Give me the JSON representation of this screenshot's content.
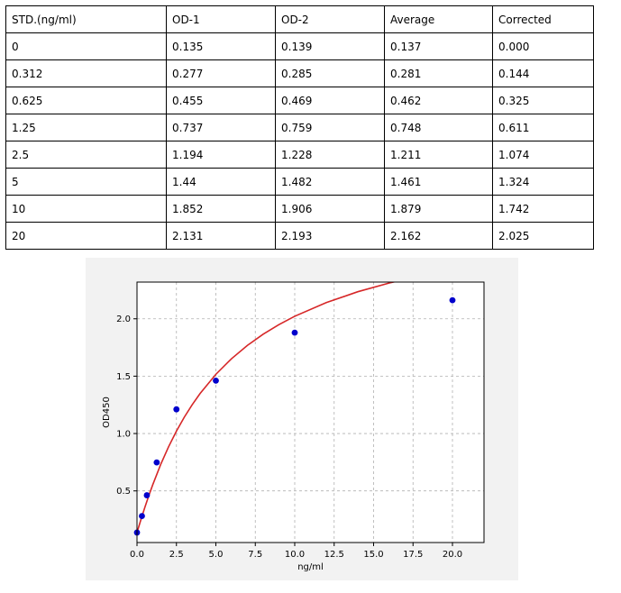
{
  "table": {
    "headers": [
      "STD.(ng/ml)",
      "OD-1",
      "OD-2",
      "Average",
      "Corrected"
    ],
    "rows": [
      [
        "0",
        "0.135",
        "0.139",
        "0.137",
        "0.000"
      ],
      [
        "0.312",
        "0.277",
        "0.285",
        "0.281",
        "0.144"
      ],
      [
        "0.625",
        "0.455",
        "0.469",
        "0.462",
        "0.325"
      ],
      [
        "1.25",
        "0.737",
        "0.759",
        "0.748",
        "0.611"
      ],
      [
        "2.5",
        "1.194",
        "1.228",
        "1.211",
        "1.074"
      ],
      [
        "5",
        "1.44",
        "1.482",
        "1.461",
        "1.324"
      ],
      [
        "10",
        "1.852",
        "1.906",
        "1.879",
        "1.742"
      ],
      [
        "20",
        "2.131",
        "2.193",
        "2.162",
        "2.025"
      ]
    ]
  },
  "chart_data": {
    "type": "scatter",
    "title": "",
    "xlabel": "ng/ml",
    "ylabel": "OD450",
    "xlim": [
      0,
      22
    ],
    "ylim": [
      0.05,
      2.32
    ],
    "xticks": [
      "0.0",
      "2.5",
      "5.0",
      "7.5",
      "10.0",
      "12.5",
      "15.0",
      "17.5",
      "20.0"
    ],
    "xtick_values": [
      0,
      2.5,
      5,
      7.5,
      10,
      12.5,
      15,
      17.5,
      20
    ],
    "yticks": [
      "0.5",
      "1.0",
      "1.5",
      "2.0"
    ],
    "ytick_values": [
      0.5,
      1.0,
      1.5,
      2.0
    ],
    "grid": true,
    "points": {
      "x": [
        0,
        0.312,
        0.625,
        1.25,
        2.5,
        5,
        10,
        20
      ],
      "y": [
        0.137,
        0.281,
        0.462,
        0.748,
        1.211,
        1.461,
        1.879,
        2.162
      ]
    },
    "fit_curve": {
      "x": [
        0,
        0.25,
        0.5,
        0.75,
        1,
        1.5,
        2,
        2.5,
        3,
        3.5,
        4,
        5,
        6,
        7,
        8,
        9,
        10,
        12,
        14,
        16,
        18,
        20,
        22
      ],
      "y": [
        0.137,
        0.25,
        0.357,
        0.459,
        0.554,
        0.73,
        0.884,
        1.021,
        1.143,
        1.251,
        1.349,
        1.516,
        1.653,
        1.768,
        1.866,
        1.949,
        2.022,
        2.141,
        2.236,
        2.312,
        2.374,
        2.426,
        2.47
      ]
    },
    "colors": {
      "points": "#0000cc",
      "curve": "#d62728",
      "grid": "#b0b0b0",
      "axes": "#000000"
    }
  }
}
